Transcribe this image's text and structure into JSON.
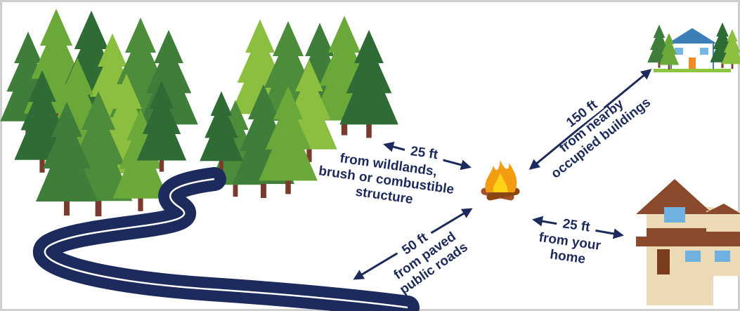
{
  "labels": [
    {
      "distance": "25 ft",
      "lines": [
        "from wildlands,",
        "brush or combustible",
        "structure"
      ]
    },
    {
      "distance": "150 ft",
      "lines": [
        "from nearby",
        "occupied buildings"
      ]
    },
    {
      "distance": "25 ft",
      "lines": [
        "from your",
        "home"
      ]
    },
    {
      "distance": "50 ft",
      "lines": [
        "from paved",
        "public roads"
      ]
    }
  ]
}
